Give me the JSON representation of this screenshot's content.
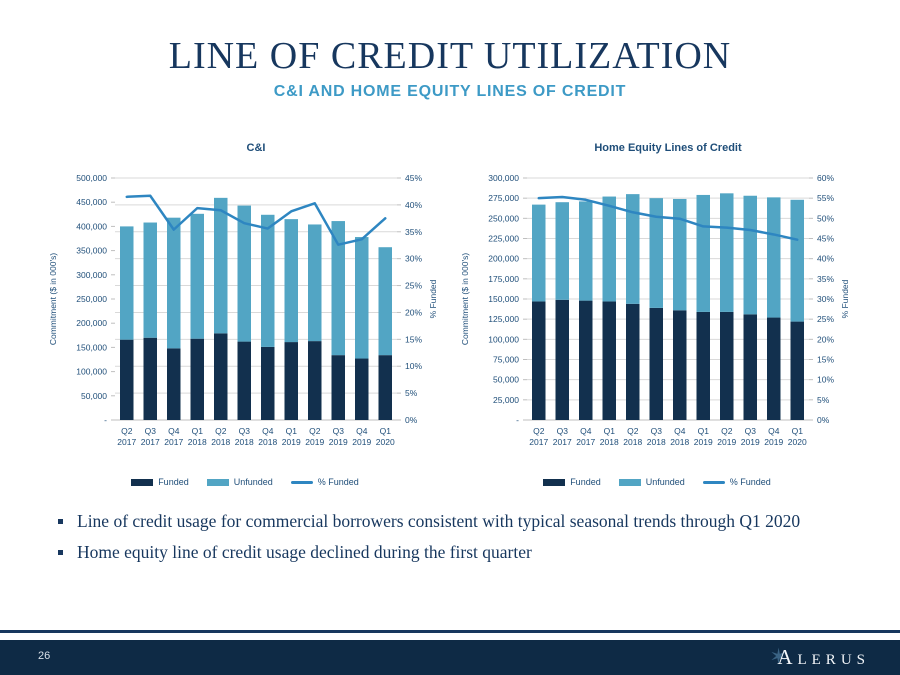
{
  "slide": {
    "title": "LINE OF CREDIT UTILIZATION",
    "subtitle": "C&I AND HOME EQUITY LINES OF CREDIT",
    "bullets": [
      "Line of credit usage for commercial borrowers consistent with typical seasonal trends through Q1 2020",
      "Home equity line of credit usage declined during the first quarter"
    ],
    "page_number": "26",
    "brand_first_letter": "A",
    "brand_rest": "LERUS"
  },
  "colors": {
    "navy": "#17375E",
    "subtitle_blue": "#3D9AC6",
    "chart_text": "#1F4E79",
    "funded": "#12304E",
    "unfunded": "#52A5C4",
    "line": "#2E86C1",
    "gridline": "#D9D9D9",
    "axis_line": "#BFBFBF",
    "footer_bg": "#0E2A45"
  },
  "chart_data": [
    {
      "type": "bar",
      "subtype": "stacked-bars-with-line",
      "title": "C&I",
      "categories_quarter": [
        "Q2",
        "Q3",
        "Q4",
        "Q1",
        "Q2",
        "Q3",
        "Q4",
        "Q1",
        "Q2",
        "Q3",
        "Q4",
        "Q1"
      ],
      "categories_year": [
        "2017",
        "2017",
        "2017",
        "2018",
        "2018",
        "2018",
        "2018",
        "2019",
        "2019",
        "2019",
        "2019",
        "2020"
      ],
      "series": [
        {
          "name": "Funded",
          "type": "bar",
          "values": [
            166000,
            170000,
            148000,
            168000,
            179000,
            162000,
            151000,
            161000,
            163000,
            134000,
            127000,
            134000
          ]
        },
        {
          "name": "Unfunded",
          "type": "bar",
          "values": [
            234000,
            238000,
            270000,
            258000,
            280000,
            281000,
            273000,
            254000,
            241000,
            277000,
            251000,
            223000
          ]
        },
        {
          "name": "% Funded",
          "type": "line",
          "axis": "right",
          "values": [
            41.5,
            41.7,
            35.4,
            39.4,
            39.0,
            36.6,
            35.6,
            38.8,
            40.3,
            32.6,
            33.6,
            37.5
          ]
        }
      ],
      "y_left": {
        "title": "Commitment ($ in 000's)",
        "min": 0,
        "max": 500000,
        "step": 50000,
        "zero_label": "-"
      },
      "y_right": {
        "title": "% Funded",
        "min": 0,
        "max": 45,
        "step": 5,
        "suffix": "%"
      },
      "grid": "horizontal",
      "legend_position": "bottom"
    },
    {
      "type": "bar",
      "subtype": "stacked-bars-with-line",
      "title": "Home Equity Lines of Credit",
      "categories_quarter": [
        "Q2",
        "Q3",
        "Q4",
        "Q1",
        "Q2",
        "Q3",
        "Q4",
        "Q1",
        "Q2",
        "Q3",
        "Q4",
        "Q1"
      ],
      "categories_year": [
        "2017",
        "2017",
        "2017",
        "2018",
        "2018",
        "2018",
        "2018",
        "2019",
        "2019",
        "2019",
        "2019",
        "2020"
      ],
      "series": [
        {
          "name": "Funded",
          "type": "bar",
          "values": [
            147000,
            149000,
            148000,
            147000,
            144000,
            139000,
            136000,
            134000,
            134000,
            131000,
            127000,
            122000
          ]
        },
        {
          "name": "Unfunded",
          "type": "bar",
          "values": [
            120000,
            121000,
            123000,
            130000,
            136000,
            136000,
            138000,
            145000,
            147000,
            147000,
            149000,
            151000
          ]
        },
        {
          "name": "% Funded",
          "type": "line",
          "axis": "right",
          "values": [
            55.0,
            55.3,
            54.6,
            53.1,
            51.5,
            50.4,
            49.9,
            48.0,
            47.7,
            47.1,
            46.0,
            44.7
          ]
        }
      ],
      "y_left": {
        "title": "Commitment ($ in 000's)",
        "min": 0,
        "max": 300000,
        "step": 25000,
        "zero_label": "-"
      },
      "y_right": {
        "title": "% Funded",
        "min": 0,
        "max": 60,
        "step": 5,
        "suffix": "%"
      },
      "grid": "horizontal",
      "legend_position": "bottom"
    }
  ]
}
